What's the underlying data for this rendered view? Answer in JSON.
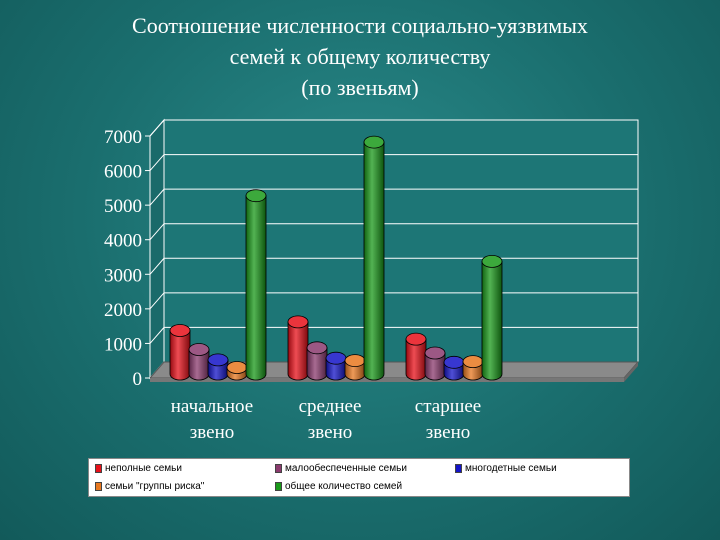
{
  "title_lines": [
    "Соотношение численности социально-уязвимых",
    "семей к общему количеству",
    "(по звеньям)"
  ],
  "chart_data": {
    "type": "bar",
    "title": "Соотношение численности социально-уязвимых семей к общему количеству (по звеньям)",
    "categories": [
      "начальное звено",
      "среднее звено",
      "старшее звено"
    ],
    "category_lines": [
      [
        "начальное",
        "звено"
      ],
      [
        "среднее",
        "звено"
      ],
      [
        "старшее",
        "звено"
      ]
    ],
    "yticks": [
      "0",
      "1000",
      "2000",
      "3000",
      "4000",
      "5000",
      "6000",
      "7000"
    ],
    "ylim": [
      0,
      7000
    ],
    "grid": true,
    "legend_position": "bottom",
    "series": [
      {
        "name": "неполные семьи",
        "color": "#e8101a",
        "values": [
          1200,
          1450,
          950
        ]
      },
      {
        "name": "малообеспеченные семьи",
        "color": "#8b3a6e",
        "values": [
          650,
          700,
          550
        ]
      },
      {
        "name": "многодетные семьи",
        "color": "#1414c8",
        "values": [
          350,
          400,
          280
        ]
      },
      {
        "name": "семьи \"группы риска\"",
        "color": "#e87820",
        "values": [
          130,
          330,
          300
        ]
      },
      {
        "name": "общее количество семей",
        "color": "#1a9a1a",
        "values": [
          5100,
          6650,
          3200
        ]
      }
    ]
  }
}
